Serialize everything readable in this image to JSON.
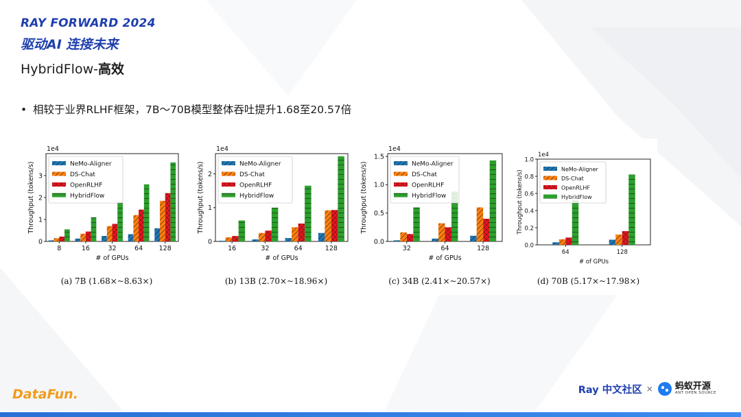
{
  "header": {
    "brand_title": "RAY FORWARD 2024",
    "brand_subtitle": "驱动AI 连接未来",
    "slide_title_prefix": "HybridFlow-",
    "slide_title_bold": "高效"
  },
  "bullet": {
    "dot": "•",
    "text": "相较于业界RLHF框架，7B～70B模型整体吞吐提升1.68至20.57倍"
  },
  "footer": {
    "left_logo": "DataFun.",
    "ray_community": "Ray 中文社区",
    "times": "×",
    "ant_main": "蚂蚁开源",
    "ant_sub": "ANT OPEN SOURCE"
  },
  "colors": {
    "accent": "#1f3fae",
    "nemo": "#1f77b4",
    "dschat": "#ff7f0e",
    "openrlhf": "#e8141e",
    "hybridflow": "#2ca02c"
  },
  "chart_data": [
    {
      "type": "bar",
      "title": "",
      "caption": "(a)  7B (1.68×~8.63×)",
      "multiplier": "1e4",
      "xlabel": "# of GPUs",
      "ylabel": "Throughput (tokens/s)",
      "categories": [
        "8",
        "16",
        "32",
        "64",
        "128"
      ],
      "ylim": [
        0,
        4
      ],
      "yticks": [
        0,
        1,
        2,
        3
      ],
      "ytick_labels": [
        "0",
        "1",
        "2",
        "3"
      ],
      "series": [
        {
          "name": "NeMo-Aligner",
          "values": [
            0.05,
            0.13,
            0.25,
            0.33,
            0.6
          ]
        },
        {
          "name": "DS-Chat",
          "values": [
            0.15,
            0.35,
            0.7,
            1.2,
            1.85
          ]
        },
        {
          "name": "OpenRLHF",
          "values": [
            0.22,
            0.45,
            0.8,
            1.45,
            2.2
          ]
        },
        {
          "name": "HybridFlow",
          "values": [
            0.55,
            1.1,
            1.8,
            2.6,
            3.6
          ]
        }
      ]
    },
    {
      "type": "bar",
      "title": "",
      "caption": "(b)  13B (2.70×~18.96×)",
      "multiplier": "1e4",
      "xlabel": "# of GPUs",
      "ylabel": "Throughput (tokens/s)",
      "categories": [
        "16",
        "32",
        "64",
        "128"
      ],
      "ylim": [
        0,
        2.6
      ],
      "yticks": [
        0,
        1,
        2
      ],
      "ytick_labels": [
        "0",
        "1",
        "2"
      ],
      "series": [
        {
          "name": "NeMo-Aligner",
          "values": [
            0.02,
            0.06,
            0.1,
            0.25
          ]
        },
        {
          "name": "DS-Chat",
          "values": [
            0.12,
            0.25,
            0.42,
            0.92
          ]
        },
        {
          "name": "OpenRLHF",
          "values": [
            0.16,
            0.32,
            0.53,
            0.93
          ]
        },
        {
          "name": "HybridFlow",
          "values": [
            0.62,
            1.0,
            1.65,
            2.52
          ]
        }
      ]
    },
    {
      "type": "bar",
      "title": "",
      "caption": "(c)  34B (2.41×~20.57×)",
      "multiplier": "1e4",
      "xlabel": "# of GPUs",
      "ylabel": "Throughput (tokens/s)",
      "categories": [
        "32",
        "64",
        "128"
      ],
      "ylim": [
        0,
        1.55
      ],
      "yticks": [
        0,
        0.5,
        1.0,
        1.5
      ],
      "ytick_labels": [
        "0.0",
        "0.5",
        "1.0",
        "1.5"
      ],
      "series": [
        {
          "name": "NeMo-Aligner",
          "values": [
            0.02,
            0.05,
            0.1
          ]
        },
        {
          "name": "DS-Chat",
          "values": [
            0.16,
            0.32,
            0.6
          ]
        },
        {
          "name": "OpenRLHF",
          "values": [
            0.13,
            0.25,
            0.4
          ]
        },
        {
          "name": "HybridFlow",
          "values": [
            0.6,
            0.88,
            1.43
          ]
        }
      ]
    },
    {
      "type": "bar",
      "title": "",
      "caption": "(d)  70B (5.17×~17.98×)",
      "multiplier": "1e4",
      "xlabel": "# of GPUs",
      "ylabel": "Throughput (tokens/s)",
      "categories": [
        "64",
        "128"
      ],
      "ylim": [
        0,
        1.0
      ],
      "yticks": [
        0,
        0.2,
        0.4,
        0.6,
        0.8,
        1.0
      ],
      "ytick_labels": [
        "0.0",
        "0.2",
        "0.4",
        "0.6",
        "0.8",
        "1.0"
      ],
      "series": [
        {
          "name": "NeMo-Aligner",
          "values": [
            0.03,
            0.06
          ]
        },
        {
          "name": "DS-Chat",
          "values": [
            0.065,
            0.12
          ]
        },
        {
          "name": "OpenRLHF",
          "values": [
            0.085,
            0.16
          ]
        },
        {
          "name": "HybridFlow",
          "values": [
            0.52,
            0.82
          ]
        }
      ]
    }
  ]
}
